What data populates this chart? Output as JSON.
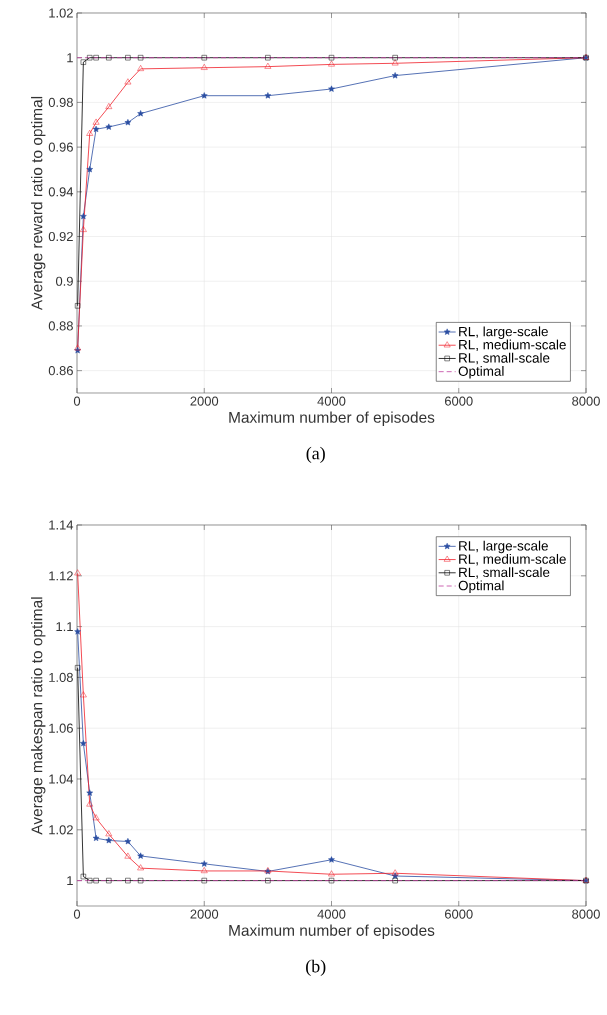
{
  "chart_data": [
    {
      "type": "line",
      "xlabel": "Maximum number of episodes",
      "ylabel": "Average reward ratio to optimal",
      "annotations": [
        "(a)"
      ],
      "xlim": [
        0,
        8000
      ],
      "ylim": [
        0.85,
        1.02
      ],
      "xticks": [
        0,
        2000,
        4000,
        6000,
        8000
      ],
      "yticks": [
        0.86,
        0.88,
        0.9,
        0.92,
        0.94,
        0.96,
        0.98,
        1,
        1.02
      ],
      "grid": true,
      "legend": "bottom right",
      "series": [
        {
          "name": "RL, large-scale",
          "color": "#2b4ea2",
          "marker": "star",
          "line_style": "solid",
          "x": [
            10,
            100,
            200,
            300,
            500,
            800,
            1000,
            2000,
            3000,
            4000,
            5000,
            8000
          ],
          "values": [
            0.869,
            0.929,
            0.95,
            0.968,
            0.969,
            0.971,
            0.975,
            0.983,
            0.983,
            0.986,
            0.992,
            1.0
          ]
        },
        {
          "name": "RL, medium-scale",
          "color": "#f01e28",
          "marker": "triangle",
          "line_style": "solid",
          "x": [
            10,
            100,
            200,
            300,
            500,
            800,
            1000,
            2000,
            3000,
            4000,
            5000,
            8000
          ],
          "values": [
            0.87,
            0.923,
            0.966,
            0.971,
            0.978,
            0.989,
            0.995,
            0.9955,
            0.996,
            0.997,
            0.9975,
            1.0
          ]
        },
        {
          "name": "RL, small-scale",
          "color": "#000000",
          "marker": "square",
          "line_style": "solid",
          "x": [
            10,
            100,
            200,
            300,
            500,
            800,
            1000,
            2000,
            3000,
            4000,
            5000,
            8000
          ],
          "values": [
            0.889,
            0.998,
            1.0,
            1.0,
            1.0,
            1.0,
            1.0,
            1.0,
            1.0,
            1.0,
            1.0,
            1.0
          ]
        },
        {
          "name": "Optimal",
          "color": "#c040a0",
          "marker": "none",
          "line_style": "dashed",
          "x": [
            0,
            8000
          ],
          "values": [
            1.0,
            1.0
          ]
        }
      ]
    },
    {
      "type": "line",
      "xlabel": "Maximum number of episodes",
      "ylabel": "Average makespan ratio to optimal",
      "annotations": [
        "(b)"
      ],
      "xlim": [
        0,
        8000
      ],
      "ylim": [
        0.99,
        1.14
      ],
      "xticks": [
        0,
        2000,
        4000,
        6000,
        8000
      ],
      "yticks": [
        1,
        1.02,
        1.04,
        1.06,
        1.08,
        1.1,
        1.12,
        1.14
      ],
      "grid": true,
      "legend": "top right",
      "series": [
        {
          "name": "RL, large-scale",
          "color": "#2b4ea2",
          "marker": "star",
          "line_style": "solid",
          "x": [
            10,
            100,
            200,
            300,
            500,
            800,
            1000,
            2000,
            3000,
            4000,
            5000,
            8000
          ],
          "values": [
            1.098,
            1.054,
            1.0345,
            1.0167,
            1.0158,
            1.0154,
            1.0097,
            1.0066,
            1.0036,
            1.0082,
            1.0018,
            1.0
          ]
        },
        {
          "name": "RL, medium-scale",
          "color": "#f01e28",
          "marker": "triangle",
          "line_style": "solid",
          "x": [
            10,
            100,
            200,
            300,
            500,
            800,
            1000,
            2000,
            3000,
            4000,
            5000,
            8000
          ],
          "values": [
            1.121,
            1.073,
            1.03,
            1.0246,
            1.0183,
            1.0095,
            1.0049,
            1.0038,
            1.0038,
            1.0025,
            1.0029,
            1.0
          ]
        },
        {
          "name": "RL, small-scale",
          "color": "#000000",
          "marker": "square",
          "line_style": "solid",
          "x": [
            10,
            100,
            200,
            300,
            500,
            800,
            1000,
            2000,
            3000,
            4000,
            5000,
            8000
          ],
          "values": [
            1.0838,
            1.0016,
            1.0,
            1.0,
            1.0,
            1.0,
            1.0,
            1.0,
            1.0,
            1.0,
            1.0,
            1.0
          ]
        },
        {
          "name": "Optimal",
          "color": "#c040a0",
          "marker": "none",
          "line_style": "dashed",
          "x": [
            0,
            8000
          ],
          "values": [
            1.0,
            1.0
          ]
        }
      ]
    }
  ]
}
